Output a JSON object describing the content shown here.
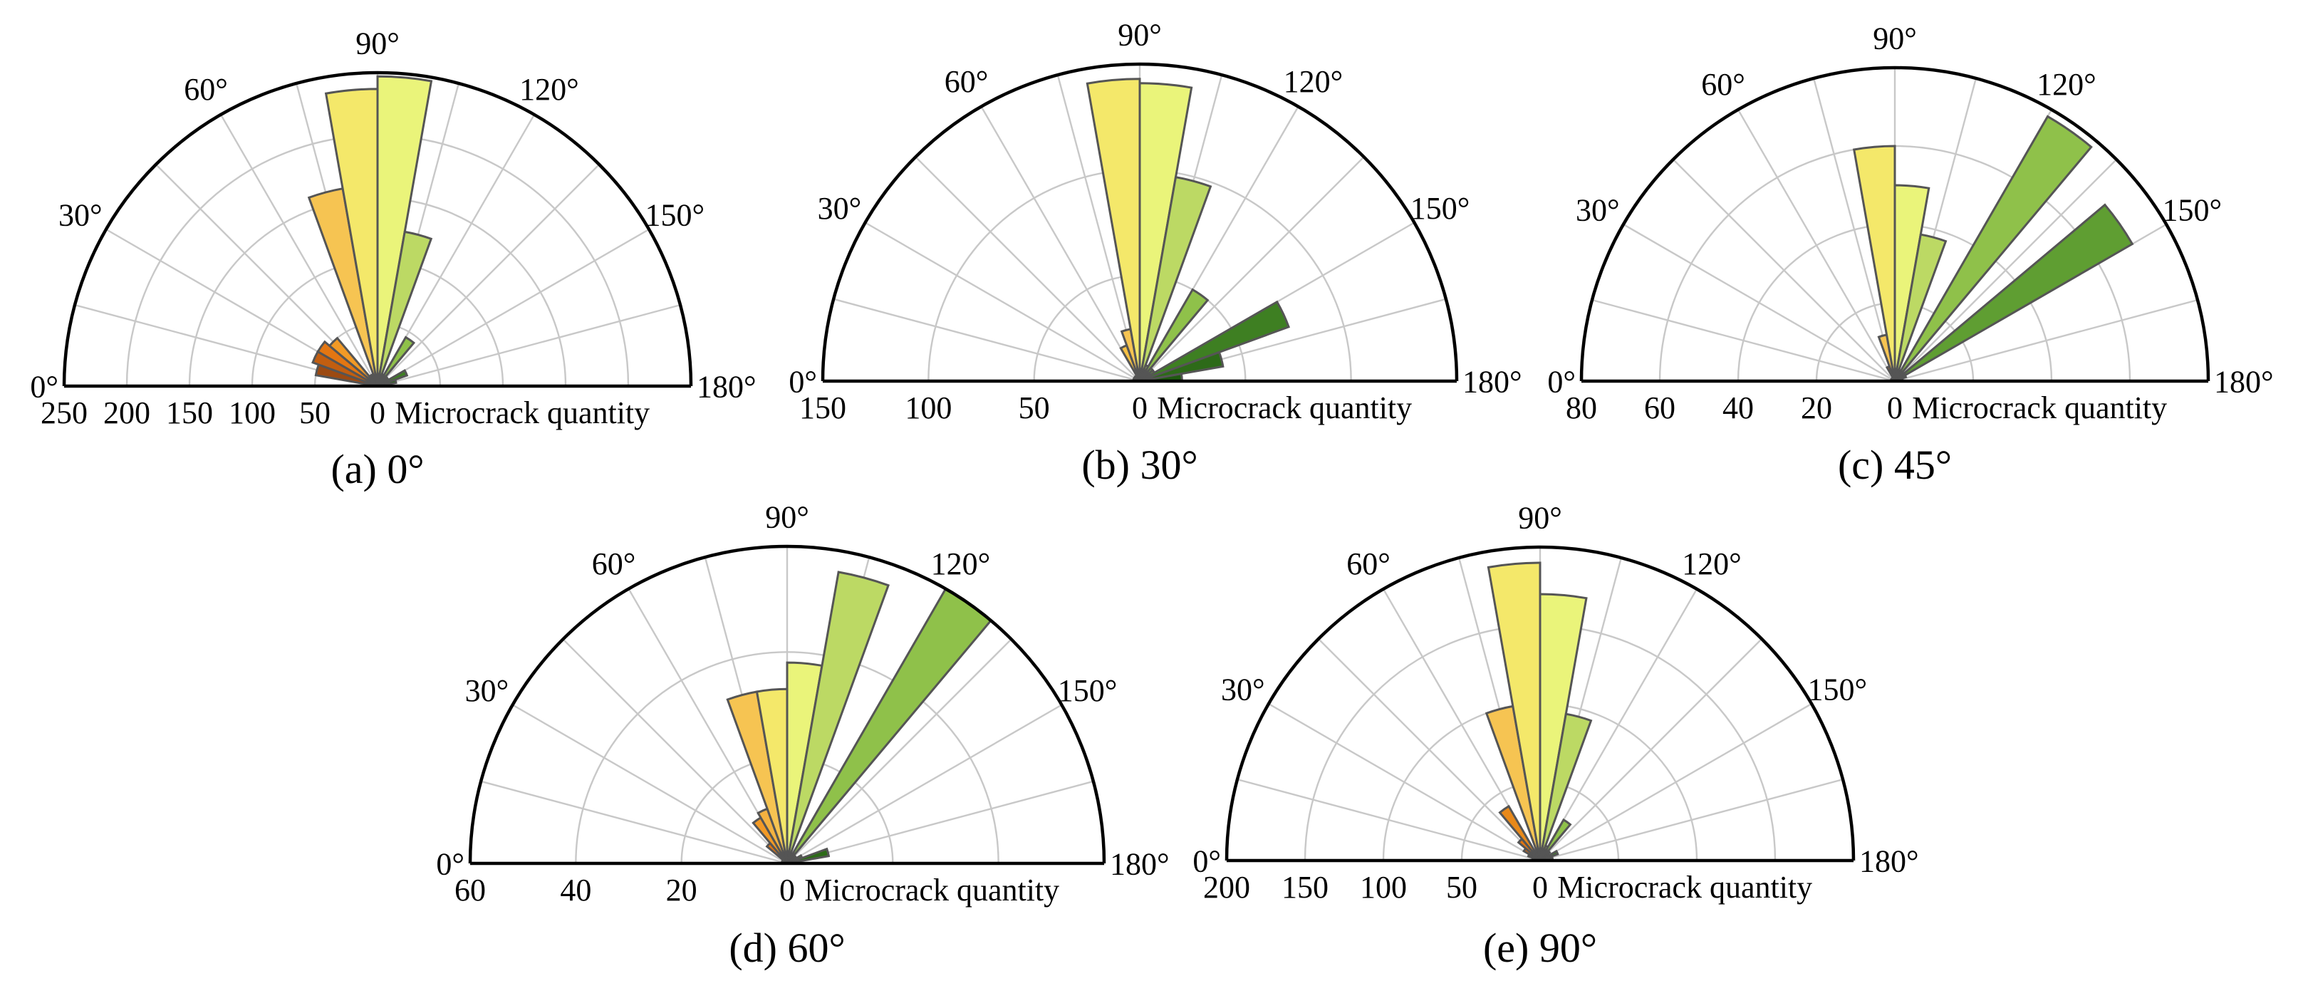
{
  "chart_data": [
    {
      "type": "polar-bar",
      "caption": "(a) 0°",
      "radial_label": "Microcrack quantity",
      "rmax": 250,
      "radial_ticks": [
        {
          "value": 250,
          "label": "250"
        },
        {
          "value": 200,
          "label": "200"
        },
        {
          "value": 150,
          "label": "150"
        },
        {
          "value": 100,
          "label": "100"
        },
        {
          "value": 50,
          "label": "50"
        },
        {
          "value": 0,
          "label": "0"
        }
      ],
      "angle_ticks": [
        "0°",
        "30°",
        "60°",
        "90°",
        "120°",
        "150°",
        "180°"
      ],
      "bin_width_deg": 10,
      "bins": [
        {
          "start": 0,
          "end": 10,
          "value": 5,
          "color": "#7a3a0d"
        },
        {
          "start": 10,
          "end": 20,
          "value": 50,
          "color": "#9c4a12"
        },
        {
          "start": 20,
          "end": 30,
          "value": 55,
          "color": "#c25e10"
        },
        {
          "start": 30,
          "end": 40,
          "value": 55,
          "color": "#e37612"
        },
        {
          "start": 40,
          "end": 50,
          "value": 50,
          "color": "#f29a26"
        },
        {
          "start": 50,
          "end": 60,
          "value": 10,
          "color": "#f4b240"
        },
        {
          "start": 60,
          "end": 70,
          "value": 10,
          "color": "#f5c043"
        },
        {
          "start": 70,
          "end": 80,
          "value": 160,
          "color": "#f6c452"
        },
        {
          "start": 80,
          "end": 90,
          "value": 237,
          "color": "#f4e86a"
        },
        {
          "start": 90,
          "end": 100,
          "value": 247,
          "color": "#eaf47a"
        },
        {
          "start": 100,
          "end": 110,
          "value": 125,
          "color": "#bcd964"
        },
        {
          "start": 110,
          "end": 120,
          "value": 10,
          "color": "#a9cf58"
        },
        {
          "start": 120,
          "end": 130,
          "value": 45,
          "color": "#8fc14a"
        },
        {
          "start": 130,
          "end": 140,
          "value": 10,
          "color": "#77b142"
        },
        {
          "start": 140,
          "end": 150,
          "value": 10,
          "color": "#5f9e32"
        },
        {
          "start": 150,
          "end": 160,
          "value": 25,
          "color": "#3e7f22"
        },
        {
          "start": 160,
          "end": 170,
          "value": 15,
          "color": "#2d6a18"
        },
        {
          "start": 170,
          "end": 180,
          "value": 5,
          "color": "#1f5a10"
        }
      ]
    },
    {
      "type": "polar-bar",
      "caption": "(b) 30°",
      "radial_label": "Microcrack quantity",
      "rmax": 150,
      "radial_ticks": [
        {
          "value": 150,
          "label": "150"
        },
        {
          "value": 100,
          "label": "100"
        },
        {
          "value": 50,
          "label": "50"
        },
        {
          "value": 0,
          "label": "0"
        }
      ],
      "angle_ticks": [
        "0°",
        "30°",
        "60°",
        "90°",
        "120°",
        "150°",
        "180°"
      ],
      "bin_width_deg": 10,
      "bins": [
        {
          "start": 0,
          "end": 10,
          "value": 3,
          "color": "#7a3a0d"
        },
        {
          "start": 10,
          "end": 20,
          "value": 3,
          "color": "#9c4a12"
        },
        {
          "start": 20,
          "end": 30,
          "value": 3,
          "color": "#c25e10"
        },
        {
          "start": 30,
          "end": 40,
          "value": 3,
          "color": "#e37612"
        },
        {
          "start": 40,
          "end": 50,
          "value": 3,
          "color": "#f29a26"
        },
        {
          "start": 50,
          "end": 60,
          "value": 3,
          "color": "#f4b240"
        },
        {
          "start": 60,
          "end": 70,
          "value": 18,
          "color": "#f5c043"
        },
        {
          "start": 70,
          "end": 80,
          "value": 25,
          "color": "#f6c452"
        },
        {
          "start": 80,
          "end": 90,
          "value": 143,
          "color": "#f4e86a"
        },
        {
          "start": 90,
          "end": 100,
          "value": 141,
          "color": "#eaf47a"
        },
        {
          "start": 100,
          "end": 110,
          "value": 98,
          "color": "#bcd964"
        },
        {
          "start": 110,
          "end": 120,
          "value": 8,
          "color": "#a9cf58"
        },
        {
          "start": 120,
          "end": 130,
          "value": 50,
          "color": "#8fc14a"
        },
        {
          "start": 130,
          "end": 140,
          "value": 8,
          "color": "#77b142"
        },
        {
          "start": 140,
          "end": 150,
          "value": 8,
          "color": "#5f9e32"
        },
        {
          "start": 150,
          "end": 160,
          "value": 75,
          "color": "#3e7f22"
        },
        {
          "start": 160,
          "end": 170,
          "value": 40,
          "color": "#2d6a18"
        },
        {
          "start": 170,
          "end": 180,
          "value": 20,
          "color": "#1f5a10"
        }
      ]
    },
    {
      "type": "polar-bar",
      "caption": "(c) 45°",
      "radial_label": "Microcrack quantity",
      "rmax": 80,
      "radial_ticks": [
        {
          "value": 80,
          "label": "80"
        },
        {
          "value": 60,
          "label": "60"
        },
        {
          "value": 40,
          "label": "40"
        },
        {
          "value": 20,
          "label": "20"
        },
        {
          "value": 0,
          "label": "0"
        }
      ],
      "angle_ticks": [
        "0°",
        "30°",
        "60°",
        "90°",
        "120°",
        "150°",
        "180°"
      ],
      "bin_width_deg": 10,
      "bins": [
        {
          "start": 0,
          "end": 10,
          "value": 1,
          "color": "#7a3a0d"
        },
        {
          "start": 10,
          "end": 20,
          "value": 1,
          "color": "#9c4a12"
        },
        {
          "start": 20,
          "end": 30,
          "value": 1,
          "color": "#c25e10"
        },
        {
          "start": 30,
          "end": 40,
          "value": 1,
          "color": "#e37612"
        },
        {
          "start": 40,
          "end": 50,
          "value": 1,
          "color": "#f29a26"
        },
        {
          "start": 50,
          "end": 60,
          "value": 1,
          "color": "#f4b240"
        },
        {
          "start": 60,
          "end": 70,
          "value": 4,
          "color": "#e37612"
        },
        {
          "start": 70,
          "end": 80,
          "value": 12,
          "color": "#f6c452"
        },
        {
          "start": 80,
          "end": 90,
          "value": 60,
          "color": "#f4e86a"
        },
        {
          "start": 90,
          "end": 100,
          "value": 50,
          "color": "#eaf47a"
        },
        {
          "start": 100,
          "end": 110,
          "value": 38,
          "color": "#bcd964"
        },
        {
          "start": 110,
          "end": 120,
          "value": 3,
          "color": "#a9cf58"
        },
        {
          "start": 120,
          "end": 130,
          "value": 78,
          "color": "#8fc14a"
        },
        {
          "start": 130,
          "end": 140,
          "value": 3,
          "color": "#77b142"
        },
        {
          "start": 140,
          "end": 150,
          "value": 70,
          "color": "#5f9e32"
        },
        {
          "start": 150,
          "end": 160,
          "value": 3,
          "color": "#3e7f22"
        },
        {
          "start": 160,
          "end": 170,
          "value": 2,
          "color": "#2d6a18"
        },
        {
          "start": 170,
          "end": 180,
          "value": 1,
          "color": "#1f5a10"
        }
      ]
    },
    {
      "type": "polar-bar",
      "caption": "(d) 60°",
      "radial_label": "Microcrack quantity",
      "rmax": 60,
      "radial_ticks": [
        {
          "value": 60,
          "label": "60"
        },
        {
          "value": 40,
          "label": "40"
        },
        {
          "value": 20,
          "label": "20"
        },
        {
          "value": 0,
          "label": "0"
        }
      ],
      "angle_ticks": [
        "0°",
        "30°",
        "60°",
        "90°",
        "120°",
        "150°",
        "180°"
      ],
      "bin_width_deg": 10,
      "bins": [
        {
          "start": 0,
          "end": 10,
          "value": 1,
          "color": "#7a3a0d"
        },
        {
          "start": 10,
          "end": 20,
          "value": 1,
          "color": "#9c4a12"
        },
        {
          "start": 20,
          "end": 30,
          "value": 1,
          "color": "#c25e10"
        },
        {
          "start": 30,
          "end": 40,
          "value": 1,
          "color": "#e37612"
        },
        {
          "start": 40,
          "end": 50,
          "value": 5,
          "color": "#e37612"
        },
        {
          "start": 50,
          "end": 60,
          "value": 10,
          "color": "#f29a26"
        },
        {
          "start": 60,
          "end": 70,
          "value": 11,
          "color": "#f4b240"
        },
        {
          "start": 70,
          "end": 80,
          "value": 33,
          "color": "#f6c452"
        },
        {
          "start": 80,
          "end": 90,
          "value": 33,
          "color": "#f4e86a"
        },
        {
          "start": 90,
          "end": 100,
          "value": 38,
          "color": "#eaf47a"
        },
        {
          "start": 100,
          "end": 110,
          "value": 56,
          "color": "#bcd964"
        },
        {
          "start": 110,
          "end": 120,
          "value": 2,
          "color": "#a9cf58"
        },
        {
          "start": 120,
          "end": 130,
          "value": 60,
          "color": "#8fc14a"
        },
        {
          "start": 130,
          "end": 140,
          "value": 2,
          "color": "#77b142"
        },
        {
          "start": 140,
          "end": 150,
          "value": 2,
          "color": "#5f9e32"
        },
        {
          "start": 150,
          "end": 160,
          "value": 3,
          "color": "#3e7f22"
        },
        {
          "start": 160,
          "end": 170,
          "value": 8,
          "color": "#2d6a18"
        },
        {
          "start": 170,
          "end": 180,
          "value": 2,
          "color": "#1f5a10"
        }
      ]
    },
    {
      "type": "polar-bar",
      "caption": "(e) 90°",
      "radial_label": "Microcrack quantity",
      "rmax": 200,
      "radial_ticks": [
        {
          "value": 200,
          "label": "200"
        },
        {
          "value": 150,
          "label": "150"
        },
        {
          "value": 100,
          "label": "100"
        },
        {
          "value": 50,
          "label": "50"
        },
        {
          "value": 0,
          "label": "0"
        }
      ],
      "angle_ticks": [
        "0°",
        "30°",
        "60°",
        "90°",
        "120°",
        "150°",
        "180°"
      ],
      "bin_width_deg": 10,
      "bins": [
        {
          "start": 0,
          "end": 10,
          "value": 3,
          "color": "#7a3a0d"
        },
        {
          "start": 10,
          "end": 20,
          "value": 5,
          "color": "#9c4a12"
        },
        {
          "start": 20,
          "end": 30,
          "value": 8,
          "color": "#c25e10"
        },
        {
          "start": 30,
          "end": 40,
          "value": 12,
          "color": "#d96a10"
        },
        {
          "start": 40,
          "end": 50,
          "value": 18,
          "color": "#e37612"
        },
        {
          "start": 50,
          "end": 60,
          "value": 40,
          "color": "#e8891a"
        },
        {
          "start": 60,
          "end": 70,
          "value": 5,
          "color": "#f4b240"
        },
        {
          "start": 70,
          "end": 80,
          "value": 100,
          "color": "#f6c452"
        },
        {
          "start": 80,
          "end": 90,
          "value": 190,
          "color": "#f4e86a"
        },
        {
          "start": 90,
          "end": 100,
          "value": 170,
          "color": "#eaf47a"
        },
        {
          "start": 100,
          "end": 110,
          "value": 95,
          "color": "#bcd964"
        },
        {
          "start": 110,
          "end": 120,
          "value": 10,
          "color": "#a9cf58"
        },
        {
          "start": 120,
          "end": 130,
          "value": 30,
          "color": "#8fc14a"
        },
        {
          "start": 130,
          "end": 140,
          "value": 8,
          "color": "#77b142"
        },
        {
          "start": 140,
          "end": 150,
          "value": 5,
          "color": "#5f9e32"
        },
        {
          "start": 150,
          "end": 160,
          "value": 12,
          "color": "#3e7f22"
        },
        {
          "start": 160,
          "end": 170,
          "value": 8,
          "color": "#2d6a18"
        },
        {
          "start": 170,
          "end": 180,
          "value": 3,
          "color": "#1f5a10"
        }
      ]
    }
  ]
}
